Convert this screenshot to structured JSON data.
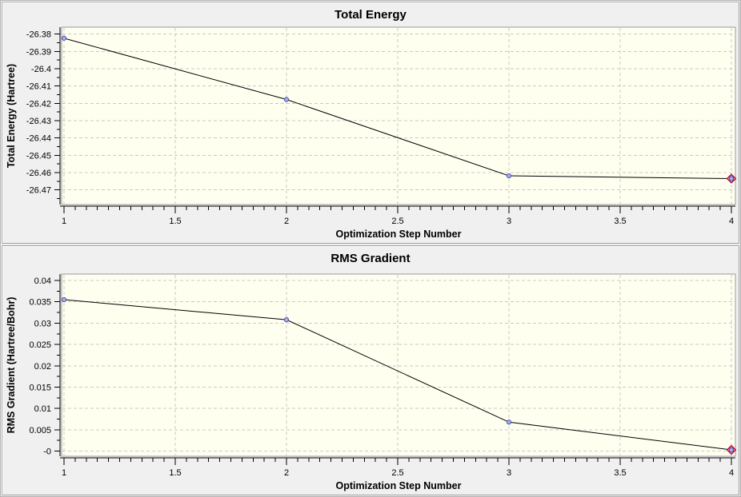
{
  "colors": {
    "window_background": "#f0f0f0",
    "panel_border": "#a2a2a2",
    "canvas_background": "#fffff0",
    "canvas_border": "#9a9a9a",
    "grid": "#c9c9c9",
    "axis": "#000000",
    "text": "#000000",
    "series_line": "#000000",
    "marker_fill": "#aab0e8",
    "marker_stroke": "#4a52aa",
    "highlight_diamond": "#bb1144"
  },
  "chart_data": [
    {
      "type": "line",
      "title": "Total Energy",
      "xlabel": "Optimization Step Number",
      "ylabel": "Total Energy (Hartree)",
      "x": [
        1,
        2,
        3,
        4
      ],
      "y": [
        -26.3824,
        -26.4178,
        -26.4619,
        -26.4635
      ],
      "xlim": [
        1,
        4
      ],
      "ylim": [
        -26.4785,
        -26.376
      ],
      "xticks": {
        "values": [
          1,
          1.5,
          2,
          2.5,
          3,
          3.5,
          4
        ],
        "labels": [
          "1",
          "1.5",
          "2",
          "2.5",
          "3",
          "3.5",
          "4"
        ],
        "minor_step": 0.05
      },
      "yticks": {
        "values": [
          -26.38,
          -26.39,
          -26.4,
          -26.41,
          -26.42,
          -26.43,
          -26.44,
          -26.45,
          -26.46,
          -26.47
        ],
        "labels": [
          "-26.38",
          "-26.39",
          "-26.4",
          "-26.41",
          "-26.42",
          "-26.43",
          "-26.44",
          "-26.45",
          "-26.46",
          "-26.47"
        ]
      },
      "grid": "dashed",
      "legend": null,
      "highlight_last_point": true
    },
    {
      "type": "line",
      "title": "RMS Gradient",
      "xlabel": "Optimization Step Number",
      "ylabel": "RMS Gradient (Hartree/Bohr)",
      "x": [
        1,
        2,
        3,
        4
      ],
      "y": [
        0.0355,
        0.0308,
        0.0068,
        0.0003
      ],
      "xlim": [
        1,
        4
      ],
      "ylim": [
        -0.0012,
        0.0415
      ],
      "xticks": {
        "values": [
          1,
          1.5,
          2,
          2.5,
          3,
          3.5,
          4
        ],
        "labels": [
          "1",
          "1.5",
          "2",
          "2.5",
          "3",
          "3.5",
          "4"
        ],
        "minor_step": 0.05
      },
      "yticks": {
        "values": [
          0.04,
          0.035,
          0.03,
          0.025,
          0.02,
          0.015,
          0.01,
          0.005,
          0
        ],
        "labels": [
          "0.04",
          "0.035",
          "0.03",
          "0.025",
          "0.02",
          "0.015",
          "0.01",
          "0.005",
          "-0"
        ]
      },
      "grid": "dashed",
      "legend": null,
      "highlight_last_point": true
    }
  ]
}
